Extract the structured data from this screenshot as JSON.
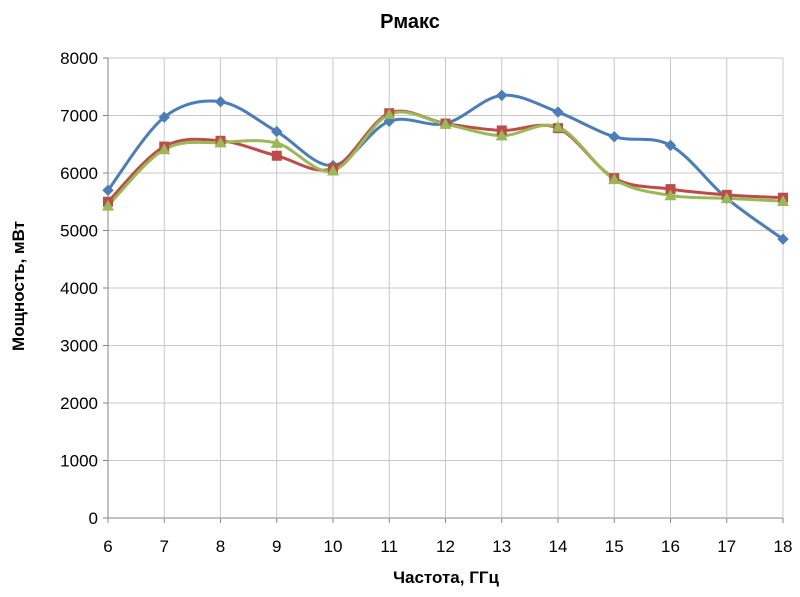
{
  "chart_data": {
    "type": "line",
    "title": "Pмакс",
    "xlabel": "Частота, ГГц",
    "ylabel": "Мощность, мВт",
    "x": [
      6,
      7,
      8,
      9,
      10,
      11,
      12,
      13,
      14,
      15,
      16,
      17,
      18
    ],
    "xlim": [
      6,
      18
    ],
    "ylim": [
      0,
      8000
    ],
    "yticks": [
      0,
      1000,
      2000,
      3000,
      4000,
      5000,
      6000,
      7000,
      8000
    ],
    "grid": true,
    "legend": "none",
    "smooth": true,
    "series": [
      {
        "color": "#4a7ebb",
        "marker": "diamond",
        "values": [
          5700,
          6970,
          7240,
          6720,
          6130,
          6900,
          6860,
          7350,
          7060,
          6630,
          6480,
          5560,
          4850
        ]
      },
      {
        "color": "#be4b48",
        "marker": "square",
        "values": [
          5500,
          6460,
          6560,
          6300,
          6080,
          7040,
          6860,
          6740,
          6780,
          5910,
          5720,
          5620,
          5570
        ]
      },
      {
        "color": "#98b954",
        "marker": "triangle",
        "values": [
          5430,
          6410,
          6530,
          6520,
          6040,
          7020,
          6850,
          6650,
          6800,
          5890,
          5610,
          5560,
          5510
        ]
      }
    ]
  }
}
